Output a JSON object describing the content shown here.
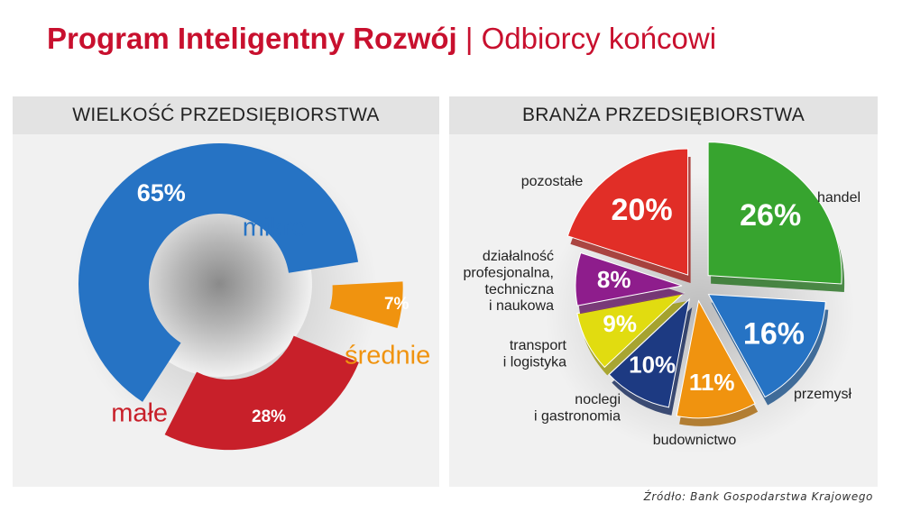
{
  "header": {
    "title_main": "Program Inteligentny Rozwój",
    "title_separator": "|",
    "title_sub": "Odbiorcy końcowi"
  },
  "source": "Źródło: Bank Gospodarstwa Krajowego",
  "colors": {
    "red": "#c8202a",
    "blue": "#2673c4",
    "orange": "#f0930f",
    "green": "#37a42f",
    "purple": "#8e1d8c",
    "yellow": "#e1dc10",
    "navy": "#1d3a82",
    "pie_red": "#e12e27"
  },
  "chart_data": [
    {
      "type": "pie",
      "subtype": "donut",
      "title": "WIELKOŚĆ PRZEDSIĘBIORSTWA",
      "series": [
        {
          "label": "mikro",
          "value": 65,
          "value_label": "65%",
          "color": "#2673c4"
        },
        {
          "label": "średnie",
          "value": 7,
          "value_label": "7%",
          "color": "#f0930f"
        },
        {
          "label": "małe",
          "value": 28,
          "value_label": "28%",
          "color": "#c8202a"
        }
      ]
    },
    {
      "type": "pie",
      "subtype": "exploded",
      "title": "BRANŻA PRZEDSIĘBIORSTWA",
      "series": [
        {
          "label": "handel",
          "value": 26,
          "value_label": "26%",
          "color": "#37a42f"
        },
        {
          "label": "przemysł",
          "value": 16,
          "value_label": "16%",
          "color": "#2673c4"
        },
        {
          "label": "budownictwo",
          "value": 11,
          "value_label": "11%",
          "color": "#f0930f"
        },
        {
          "label": "noclegi i gastronomia",
          "value": 10,
          "value_label": "10%",
          "color": "#1d3a82"
        },
        {
          "label": "transport i logistyka",
          "value": 9,
          "value_label": "9%",
          "color": "#e1dc10"
        },
        {
          "label": "działalność profesjonalna, techniczna i naukowa",
          "value": 8,
          "value_label": "8%",
          "color": "#8e1d8c"
        },
        {
          "label": "pozostałe",
          "value": 20,
          "value_label": "20%",
          "color": "#e12e27"
        }
      ]
    }
  ]
}
